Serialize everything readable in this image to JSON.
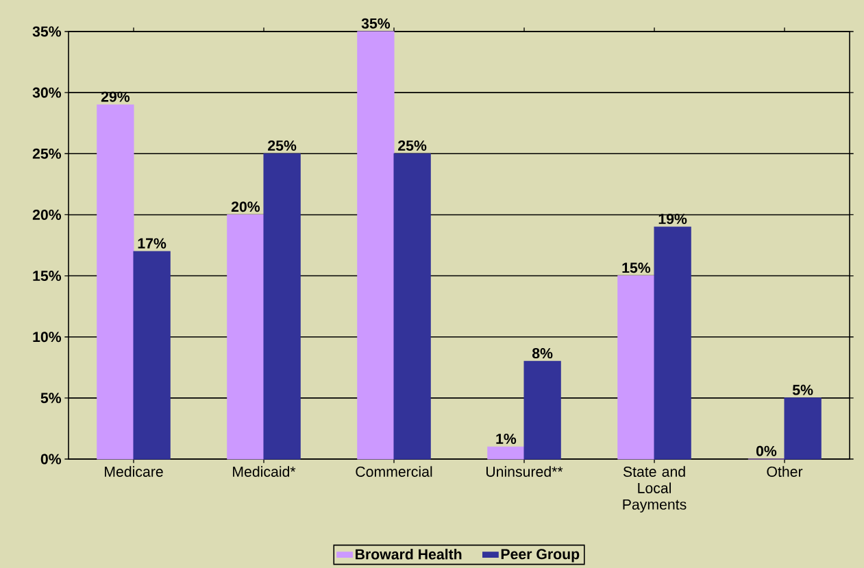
{
  "chart_data": {
    "type": "bar",
    "categories": [
      "Medicare",
      "Medicaid*",
      "Commercial",
      "Uninsured**",
      "State and Local Payments",
      "Other"
    ],
    "series": [
      {
        "name": "Broward Health",
        "color": "#cc99ff",
        "values": [
          29,
          20,
          35,
          1,
          15,
          0
        ],
        "value_labels": [
          "29%",
          "20%",
          "35%",
          "1%",
          "15%",
          "0%"
        ]
      },
      {
        "name": "Peer Group",
        "color": "#333399",
        "values": [
          17,
          25,
          25,
          8,
          19,
          5
        ],
        "value_labels": [
          "17%",
          "25%",
          "25%",
          "8%",
          "19%",
          "5%"
        ]
      }
    ],
    "ylim": [
      0,
      35
    ],
    "yticks": [
      {
        "value": 0,
        "label": "0%"
      },
      {
        "value": 5,
        "label": "5%"
      },
      {
        "value": 10,
        "label": "10%"
      },
      {
        "value": 15,
        "label": "15%"
      },
      {
        "value": 20,
        "label": "20%"
      },
      {
        "value": 25,
        "label": "25%"
      },
      {
        "value": 30,
        "label": "30%"
      },
      {
        "value": 35,
        "label": "35%"
      }
    ],
    "grid": "y",
    "legend": "bottom"
  }
}
